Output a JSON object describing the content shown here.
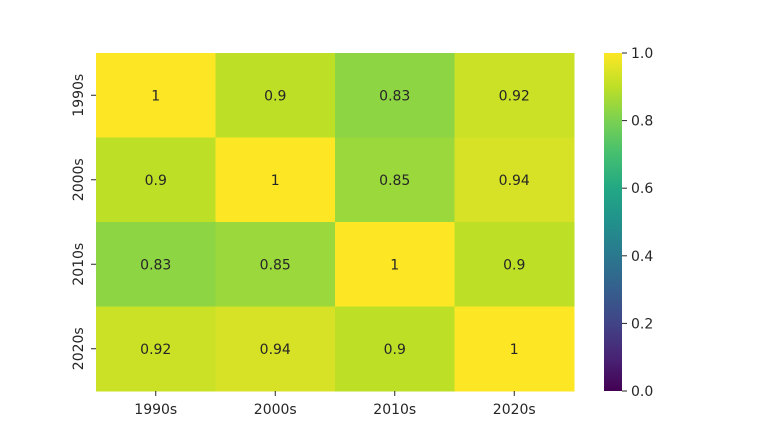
{
  "chart_data": {
    "type": "heatmap",
    "title": "",
    "xlabel": "",
    "ylabel": "",
    "x_categories": [
      "1990s",
      "2000s",
      "2010s",
      "2020s"
    ],
    "y_categories": [
      "1990s",
      "2000s",
      "2010s",
      "2020s"
    ],
    "values": [
      [
        1,
        0.9,
        0.83,
        0.92
      ],
      [
        0.9,
        1,
        0.85,
        0.94
      ],
      [
        0.83,
        0.85,
        1,
        0.9
      ],
      [
        0.92,
        0.94,
        0.9,
        1
      ]
    ],
    "annotations": [
      [
        "1",
        "0.9",
        "0.83",
        "0.92"
      ],
      [
        "0.9",
        "1",
        "0.85",
        "0.94"
      ],
      [
        "0.83",
        "0.85",
        "1",
        "0.9"
      ],
      [
        "0.92",
        "0.94",
        "0.9",
        "1"
      ]
    ],
    "colormap": "viridis",
    "colorbar": {
      "range": [
        0.0,
        1.0
      ],
      "ticks": [
        0.0,
        0.2,
        0.4,
        0.6,
        0.8,
        1.0
      ],
      "tick_labels": [
        "0.0",
        "0.2",
        "0.4",
        "0.6",
        "0.8",
        "1.0"
      ]
    }
  }
}
